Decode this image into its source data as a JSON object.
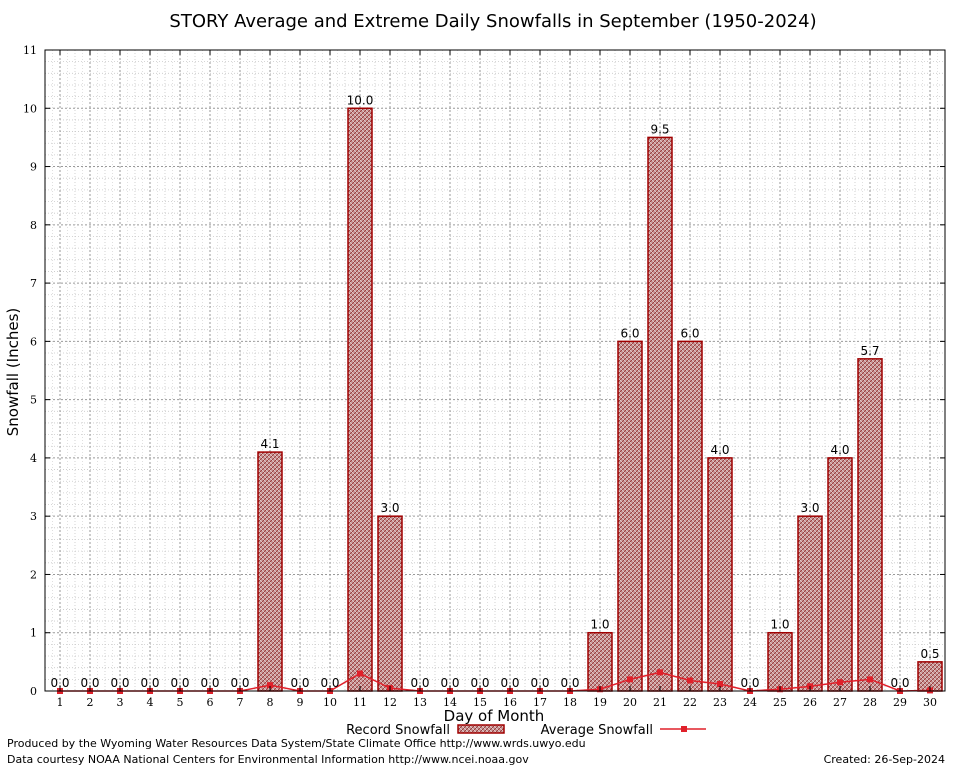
{
  "chart_data": {
    "type": "bar",
    "title": "STORY Average and Extreme Daily Snowfalls in September (1950-2024)",
    "xlabel": "Day of Month",
    "ylabel": "Snowfall (Inches)",
    "ylim": [
      0,
      11
    ],
    "yticks": [
      "0",
      "1",
      "2",
      "3",
      "4",
      "5",
      "6",
      "7",
      "8",
      "9",
      "10",
      "11"
    ],
    "categories": [
      "1",
      "2",
      "3",
      "4",
      "5",
      "6",
      "7",
      "8",
      "9",
      "10",
      "11",
      "12",
      "13",
      "14",
      "15",
      "16",
      "17",
      "18",
      "19",
      "20",
      "21",
      "22",
      "23",
      "24",
      "25",
      "26",
      "27",
      "28",
      "29",
      "30"
    ],
    "series": [
      {
        "name": "Record Snowfall",
        "kind": "bar",
        "values": [
          0,
          0,
          0,
          0,
          0,
          0,
          0,
          4.1,
          0,
          0,
          10,
          3,
          0,
          0,
          0,
          0,
          0,
          0,
          1,
          6,
          9.5,
          6,
          4,
          0,
          1,
          3,
          4,
          5.7,
          0,
          0.5
        ],
        "labels": [
          "0.0",
          "0.0",
          "0.0",
          "0.0",
          "0.0",
          "0.0",
          "0.0",
          "4.1",
          "0.0",
          "0.0",
          "10.0",
          "3.0",
          "0.0",
          "0.0",
          "0.0",
          "0.0",
          "0.0",
          "0.0",
          "1.0",
          "6.0",
          "9.5",
          "6.0",
          "4.0",
          "0.0",
          "1.0",
          "3.0",
          "4.0",
          "5.7",
          "0.0",
          "0.5"
        ]
      },
      {
        "name": "Average Snowfall",
        "kind": "line",
        "values": [
          0,
          0,
          0,
          0,
          0,
          0,
          0,
          0.1,
          0,
          0,
          0.3,
          0.05,
          0,
          0,
          0,
          0,
          0,
          0,
          0.03,
          0.2,
          0.32,
          0.18,
          0.12,
          0,
          0.03,
          0.08,
          0.15,
          0.2,
          0,
          0.01
        ]
      }
    ],
    "grid": true,
    "legend": "bottom-center",
    "colors": {
      "bar_stroke": "#a00000",
      "bar_fill": "#b98080",
      "line": "#e0202a",
      "grid": "#a0a0a0"
    }
  },
  "footer": {
    "produced_by": "Produced by the Wyoming Water Resources Data System/State Climate Office http://www.wrds.uwyo.edu",
    "courtesy": "Data courtesy NOAA National Centers for Environmental Information http://www.ncei.noaa.gov",
    "created": "Created:  26-Sep-2024"
  }
}
